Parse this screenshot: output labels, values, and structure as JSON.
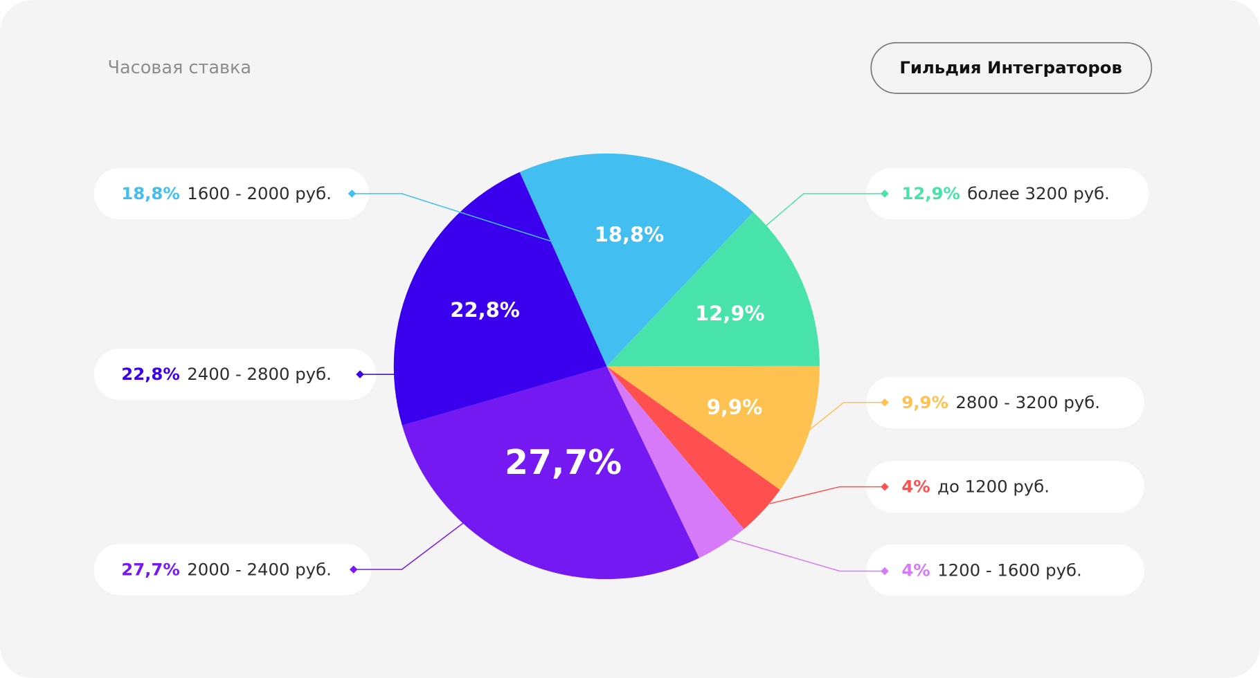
{
  "chart_data": {
    "type": "pie",
    "title": "Часовая ставка",
    "button": "Гильдия Интеграторов",
    "categories": [
      "1600 - 2000 руб.",
      "более 3200 руб.",
      "2800 - 3200 руб.",
      "до 1200 руб.",
      "1200 - 1600 руб.",
      "2000 - 2400 руб.",
      "2400 - 2800 руб."
    ],
    "values": [
      18.8,
      12.9,
      9.9,
      4,
      4,
      27.7,
      22.8
    ],
    "value_labels": [
      "18,8%",
      "12,9%",
      "9,9%",
      "4%",
      "4%",
      "27,7%",
      "22,8%"
    ],
    "colors": [
      "#42bff0",
      "#48e3ab",
      "#ffc14f",
      "#ff4f4f",
      "#d67af9",
      "#7419f2",
      "#3a00ee"
    ]
  }
}
